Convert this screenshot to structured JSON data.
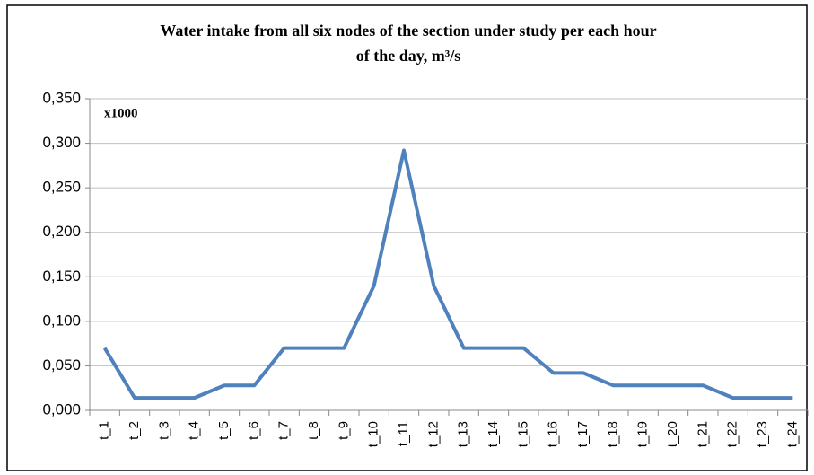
{
  "chart_data": {
    "type": "line",
    "title": "Water intake from all six nodes of the section under study per each hour of the day, m³/s",
    "annotation": "x1000",
    "categories": [
      "t_1",
      "t_2",
      "t_3",
      "t_4",
      "t_5",
      "t_6",
      "t_7",
      "t_8",
      "t_9",
      "t_10",
      "t_11",
      "t_12",
      "t_13",
      "t_14",
      "t_15",
      "t_16",
      "t_17",
      "t_18",
      "t_19",
      "t_20",
      "t_21",
      "t_22",
      "t_23",
      "t_24"
    ],
    "values": [
      0.07,
      0.014,
      0.014,
      0.014,
      0.028,
      0.028,
      0.07,
      0.07,
      0.07,
      0.14,
      0.292,
      0.14,
      0.07,
      0.07,
      0.07,
      0.042,
      0.042,
      0.028,
      0.028,
      0.028,
      0.028,
      0.014,
      0.014,
      0.014
    ],
    "color": "#4f81bd",
    "ylim": [
      0,
      0.35
    ],
    "yticks": [
      {
        "value": 0,
        "label": "0,000"
      },
      {
        "value": 0.05,
        "label": "0,050"
      },
      {
        "value": 0.1,
        "label": "0,100"
      },
      {
        "value": 0.15,
        "label": "0,150"
      },
      {
        "value": 0.2,
        "label": "0,200"
      },
      {
        "value": 0.25,
        "label": "0,250"
      },
      {
        "value": 0.3,
        "label": "0,300"
      },
      {
        "value": 0.35,
        "label": "0,350"
      }
    ],
    "grid": true
  }
}
